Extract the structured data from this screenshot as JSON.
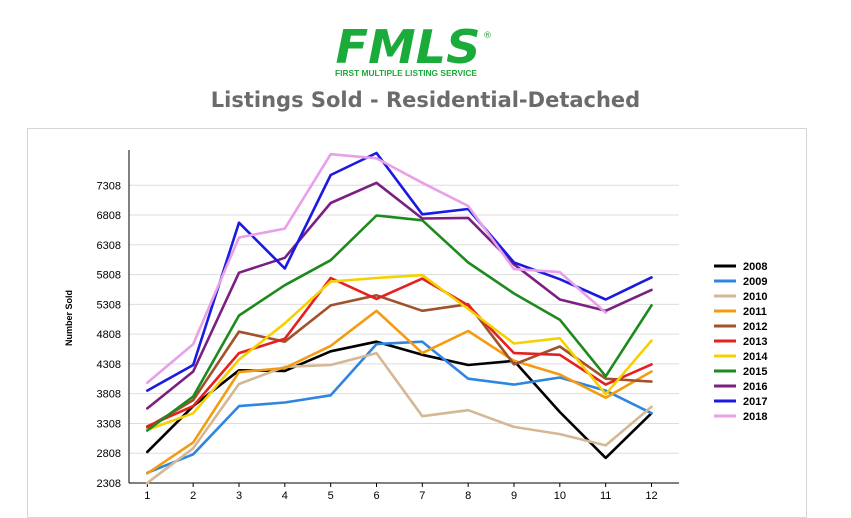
{
  "logo": {
    "wordmark": "FMLS",
    "registered": "®",
    "tagline": "FIRST MULTIPLE LISTING SERVICE"
  },
  "page_title": "Listings Sold - Residential-Detached",
  "colors": {
    "logo_green": "#1aab3a",
    "title_gray": "#6b6b6b",
    "grid": "#dddddd"
  },
  "chart_data": {
    "type": "line",
    "title": "",
    "xlabel": "",
    "ylabel": "Number Sold",
    "x": [
      1,
      2,
      3,
      4,
      5,
      6,
      7,
      8,
      9,
      10,
      11,
      12
    ],
    "yticks": [
      2308,
      2808,
      3308,
      3808,
      4308,
      4808,
      5308,
      5808,
      6308,
      6808,
      7308
    ],
    "ylim": [
      2308,
      7900
    ],
    "grid": "horizontal",
    "legend_position": "right",
    "series": [
      {
        "name": "2008",
        "color": "#000000",
        "values": [
          2830,
          3600,
          4200,
          4190,
          4520,
          4680,
          4460,
          4290,
          4360,
          3500,
          2730,
          3480
        ]
      },
      {
        "name": "2009",
        "color": "#2e86de",
        "values": [
          2480,
          2790,
          3600,
          3660,
          3780,
          4640,
          4680,
          4060,
          3960,
          4080,
          3860,
          3480
        ]
      },
      {
        "name": "2010",
        "color": "#d4b896",
        "values": [
          2310,
          2890,
          3970,
          4260,
          4290,
          4490,
          3430,
          3530,
          3250,
          3130,
          2940,
          3590
        ]
      },
      {
        "name": "2011",
        "color": "#f39c12",
        "values": [
          2470,
          2990,
          4170,
          4240,
          4610,
          5200,
          4490,
          4860,
          4360,
          4130,
          3740,
          4180
        ]
      },
      {
        "name": "2012",
        "color": "#a0522d",
        "values": [
          3240,
          3700,
          4850,
          4680,
          5290,
          5460,
          5200,
          5310,
          4300,
          4600,
          4060,
          4010
        ]
      },
      {
        "name": "2013",
        "color": "#e52020",
        "values": [
          3260,
          3600,
          4490,
          4730,
          5750,
          5400,
          5740,
          5290,
          4490,
          4460,
          3960,
          4300
        ]
      },
      {
        "name": "2014",
        "color": "#f7d000",
        "values": [
          3200,
          3480,
          4380,
          4990,
          5690,
          5750,
          5800,
          5230,
          4650,
          4740,
          3800,
          4700
        ]
      },
      {
        "name": "2015",
        "color": "#1e8a1e",
        "values": [
          3190,
          3760,
          5120,
          5630,
          6050,
          6800,
          6720,
          6010,
          5490,
          5050,
          4100,
          5290
        ]
      },
      {
        "name": "2016",
        "color": "#7b1f82",
        "values": [
          3560,
          4180,
          5840,
          6090,
          7010,
          7350,
          6750,
          6760,
          5980,
          5390,
          5200,
          5550
        ]
      },
      {
        "name": "2017",
        "color": "#1a1ae0",
        "values": [
          3860,
          4290,
          6680,
          5910,
          7480,
          7850,
          6820,
          6910,
          6010,
          5730,
          5390,
          5760
        ]
      },
      {
        "name": "2018",
        "color": "#e8a0e8",
        "values": [
          3990,
          4640,
          6430,
          6580,
          7830,
          7760,
          7350,
          6960,
          5900,
          5850,
          5170,
          null
        ]
      }
    ]
  }
}
